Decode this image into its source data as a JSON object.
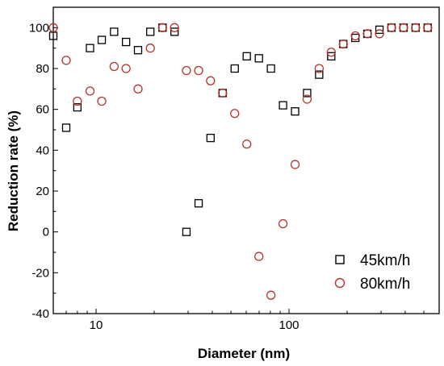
{
  "chart_data": {
    "type": "scatter",
    "xlabel": "Diameter (nm)",
    "ylabel": "Reduction rate (%)",
    "xscale": "log",
    "xlim": [
      6,
      600
    ],
    "ylim": [
      -40,
      110
    ],
    "xticks": [
      10,
      100
    ],
    "xtick_labels": [
      "10",
      "100"
    ],
    "yticks": [
      -40,
      -20,
      0,
      20,
      40,
      60,
      80,
      100
    ],
    "ytick_labels": [
      "-40",
      "-20",
      "0",
      "20",
      "40",
      "60",
      "80",
      "100"
    ],
    "grid": false,
    "legend_position": "bottom-right",
    "series": [
      {
        "name": "45km/h",
        "marker": "square",
        "color": "#000000",
        "x": [
          6,
          7,
          8,
          9.3,
          10.7,
          12.4,
          14.3,
          16.5,
          19.1,
          22.1,
          25.5,
          29.4,
          34,
          39.2,
          45.3,
          52.3,
          60.4,
          69.8,
          80.6,
          93.1,
          107.5,
          124.1,
          143.3,
          165.5,
          191.1,
          220.7,
          254.8,
          294.3,
          339.8,
          392.4,
          453.2,
          523.3
        ],
        "y": [
          96,
          51,
          61,
          90,
          94,
          98,
          93,
          89,
          98,
          100,
          98,
          0,
          14,
          46,
          68,
          80,
          86,
          85,
          80,
          62,
          59,
          68,
          77,
          86,
          92,
          95,
          97,
          99,
          100,
          100,
          100,
          100
        ]
      },
      {
        "name": "80km/h",
        "marker": "circle",
        "color": "#b5332c",
        "x": [
          6,
          7,
          8,
          9.3,
          10.7,
          12.4,
          14.3,
          16.5,
          19.1,
          22.1,
          25.5,
          29.4,
          34,
          39.2,
          45.3,
          52.3,
          60.4,
          69.8,
          80.6,
          93.1,
          107.5,
          124.1,
          143.3,
          165.5,
          191.1,
          220.7,
          254.8,
          294.3,
          339.8,
          392.4,
          453.2,
          523.3
        ],
        "y": [
          100,
          84,
          64,
          69,
          64,
          81,
          80,
          70,
          90,
          100,
          100,
          79,
          79,
          74,
          68,
          58,
          43,
          -12,
          -31,
          4,
          33,
          65,
          80,
          88,
          92,
          96,
          97,
          97,
          100,
          100,
          100,
          100
        ]
      }
    ]
  }
}
